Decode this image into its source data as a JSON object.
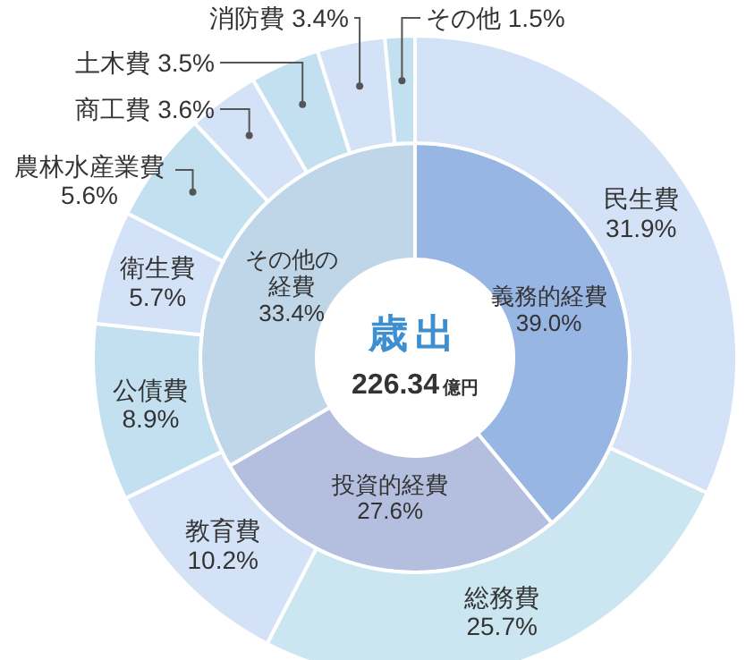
{
  "chart_data": [
    {
      "type": "donut",
      "categories": [
        "義務的経費",
        "投資的経費",
        "その他の経費"
      ],
      "values": [
        39.0,
        27.6,
        33.4
      ],
      "value_labels": [
        "39.0%",
        "27.6%",
        "33.4%"
      ],
      "colors": [
        "#98b6e3",
        "#b4bfdf",
        "#bfd6e8"
      ],
      "annotations": [
        "歳出",
        "226.34億円"
      ]
    },
    {
      "type": "donut",
      "categories": [
        "民生費",
        "総務費",
        "教育費",
        "公債費",
        "衛生費",
        "農林水産業費",
        "商工費",
        "土木費",
        "消防費",
        "その他"
      ],
      "values": [
        31.9,
        25.7,
        10.2,
        8.9,
        5.7,
        5.6,
        3.6,
        3.5,
        3.4,
        1.5
      ],
      "value_labels": [
        "31.9%",
        "25.7%",
        "10.2%",
        "8.9%",
        "5.7%",
        "5.6%",
        "3.6%",
        "3.5%",
        "3.4%",
        "1.5%"
      ],
      "colors": [
        "#d3e2f6",
        "#cbe6f1",
        "#d3e2f6",
        "#c3e0f1",
        "#d3e2f6",
        "#c3e0f1",
        "#d3e2f6",
        "#c3e0f1",
        "#d3e2f6",
        "#c3e0f1"
      ]
    }
  ]
}
